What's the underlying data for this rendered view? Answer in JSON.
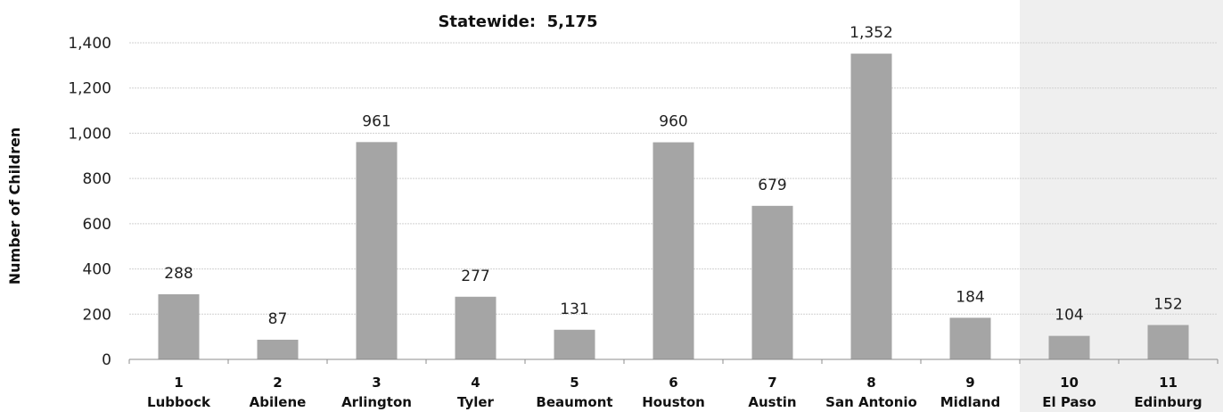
{
  "chart_data": {
    "type": "bar",
    "title": "Statewide:  5,175",
    "ylabel": "Number of Children",
    "xlabel": "",
    "ylim": [
      0,
      1400
    ],
    "yticks": [
      "0",
      "200",
      "400",
      "600",
      "800",
      "1,000",
      "1,200",
      "1,400"
    ],
    "grid": true,
    "legend": "none",
    "bar_color": "#a5a5a5",
    "highlight_color": "#efefef",
    "highlight_categories": [
      "10",
      "11"
    ],
    "categories": [
      {
        "number": "1",
        "name": "Lubbock"
      },
      {
        "number": "2",
        "name": "Abilene"
      },
      {
        "number": "3",
        "name": "Arlington"
      },
      {
        "number": "4",
        "name": "Tyler"
      },
      {
        "number": "5",
        "name": "Beaumont"
      },
      {
        "number": "6",
        "name": "Houston"
      },
      {
        "number": "7",
        "name": "Austin"
      },
      {
        "number": "8",
        "name": "San Antonio"
      },
      {
        "number": "9",
        "name": "Midland"
      },
      {
        "number": "10",
        "name": "El Paso"
      },
      {
        "number": "11",
        "name": "Edinburg"
      }
    ],
    "values": [
      288,
      87,
      961,
      277,
      131,
      960,
      679,
      1352,
      184,
      104,
      152
    ],
    "value_labels": [
      "288",
      "87",
      "961",
      "277",
      "131",
      "960",
      "679",
      "1,352",
      "184",
      "104",
      "152"
    ]
  }
}
